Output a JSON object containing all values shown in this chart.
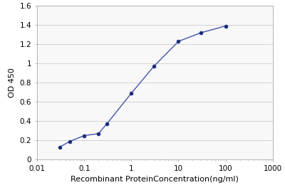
{
  "x": [
    0.03,
    0.05,
    0.1,
    0.2,
    0.3,
    1.0,
    3.0,
    10.0,
    30.0,
    100.0
  ],
  "y": [
    0.13,
    0.19,
    0.25,
    0.27,
    0.37,
    0.69,
    0.97,
    1.23,
    1.32,
    1.39
  ],
  "line_color": "#4455aa",
  "marker_color": "#1a2a7a",
  "xlabel": "Recombinant ProteinConcentration(ng/ml)",
  "ylabel": "OD 450",
  "xlim_low": 0.01,
  "xlim_high": 1000,
  "ylim": [
    0,
    1.6
  ],
  "yticks": [
    0,
    0.2,
    0.4,
    0.6,
    0.8,
    1.0,
    1.2,
    1.4,
    1.6
  ],
  "xticks": [
    0.01,
    0.1,
    1,
    10,
    100,
    1000
  ],
  "xtick_labels": [
    "0.01",
    "0.1",
    "1",
    "10",
    "100",
    "1000"
  ],
  "background_color": "#ffffff",
  "plot_bg_color": "#f8f8f8",
  "grid_color": "#cccccc",
  "label_fontsize": 8,
  "tick_fontsize": 7.5,
  "spine_color": "#aaaaaa"
}
